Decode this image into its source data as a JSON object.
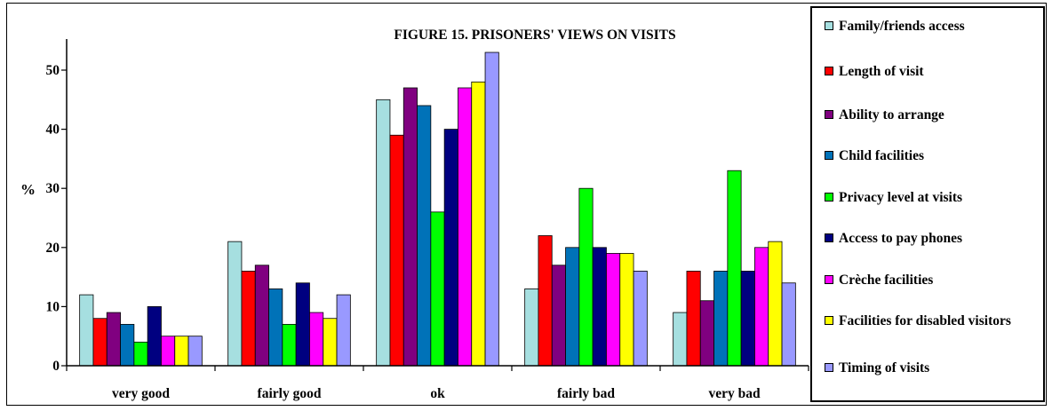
{
  "chart_data": {
    "type": "bar",
    "title": "FIGURE 15.  PRISONERS' VIEWS ON VISITS",
    "ylabel": "%",
    "ylim": [
      0,
      55
    ],
    "yticks": [
      0,
      10,
      20,
      30,
      40,
      50
    ],
    "categories": [
      "very good",
      "fairly good",
      "ok",
      "fairly bad",
      "very bad"
    ],
    "legend_position": "right",
    "grid": false,
    "series": [
      {
        "name": "Family/friends access",
        "color": "#a6dfe0",
        "values": [
          12,
          21,
          45,
          13,
          9
        ]
      },
      {
        "name": "Length of visit",
        "color": "#ff0000",
        "values": [
          8,
          16,
          39,
          22,
          16
        ]
      },
      {
        "name": "Ability to arrange",
        "color": "#800080",
        "values": [
          9,
          17,
          47,
          17,
          11
        ]
      },
      {
        "name": "Child facilities",
        "color": "#0072b8",
        "values": [
          7,
          13,
          44,
          20,
          16
        ]
      },
      {
        "name": "Privacy level at visits",
        "color": "#00ff00",
        "values": [
          4,
          7,
          26,
          30,
          33
        ]
      },
      {
        "name": "Access to pay phones",
        "color": "#000080",
        "values": [
          10,
          14,
          40,
          20,
          16
        ]
      },
      {
        "name": "Crèche facilities",
        "color": "#ff00ff",
        "values": [
          5,
          9,
          47,
          19,
          20
        ]
      },
      {
        "name": "Facilities for disabled visitors",
        "color": "#ffff00",
        "values": [
          5,
          8,
          48,
          19,
          21
        ]
      },
      {
        "name": "Timing of visits",
        "color": "#9999ff",
        "values": [
          5,
          12,
          53,
          16,
          14
        ]
      }
    ]
  }
}
